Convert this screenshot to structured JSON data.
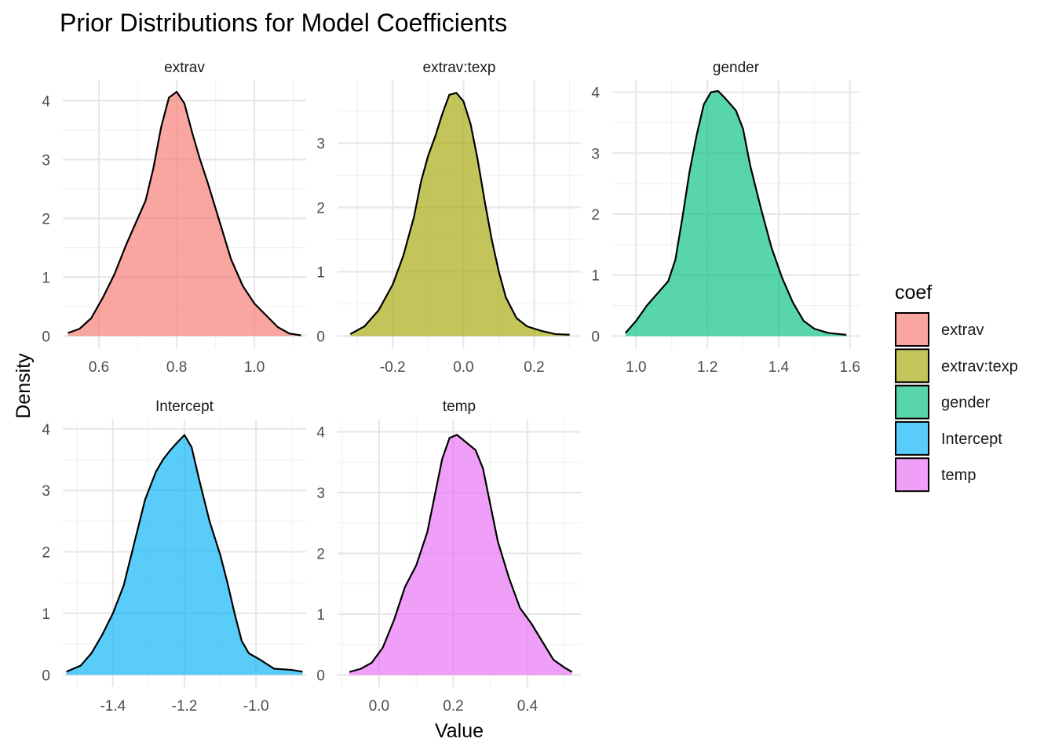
{
  "chart_data": {
    "type": "area",
    "title": "Prior Distributions for Model Coefficients",
    "xlabel": "Value",
    "ylabel": "Density",
    "grid": true,
    "legend": {
      "title": "coef",
      "placement": "right",
      "entries": [
        {
          "label": "extrav",
          "color": "#F8766D"
        },
        {
          "label": "extrav:texp",
          "color": "#A3A500"
        },
        {
          "label": "gender",
          "color": "#00BF7D"
        },
        {
          "label": "Intercept",
          "color": "#00B0F6"
        },
        {
          "label": "temp",
          "color": "#E76BF3"
        }
      ]
    },
    "panels": [
      {
        "name": "extrav",
        "color": "#F8766D",
        "xlim": [
          0.507,
          1.133
        ],
        "ylim": [
          -0.21,
          4.35
        ],
        "xticks": [
          0.6,
          0.8,
          1.0
        ],
        "xtick_labels": [
          "0.6",
          "0.8",
          "1.0"
        ],
        "yticks": [
          0,
          1,
          2,
          3,
          4
        ],
        "ytick_labels": [
          "0",
          "1",
          "2",
          "3",
          "4"
        ],
        "x": [
          0.52,
          0.55,
          0.58,
          0.61,
          0.64,
          0.67,
          0.7,
          0.72,
          0.74,
          0.76,
          0.78,
          0.8,
          0.82,
          0.84,
          0.86,
          0.88,
          0.91,
          0.94,
          0.97,
          1.0,
          1.03,
          1.06,
          1.09,
          1.12
        ],
        "y": [
          0.05,
          0.12,
          0.3,
          0.65,
          1.05,
          1.55,
          2.0,
          2.3,
          2.85,
          3.55,
          4.05,
          4.15,
          3.95,
          3.45,
          3.0,
          2.6,
          1.95,
          1.3,
          0.85,
          0.55,
          0.35,
          0.15,
          0.04,
          0.01
        ]
      },
      {
        "name": "extrav:texp",
        "color": "#A3A500",
        "xlim": [
          -0.356,
          0.332
        ],
        "ylim": [
          -0.19,
          3.98
        ],
        "xticks": [
          -0.2,
          0.0,
          0.2
        ],
        "xtick_labels": [
          "-0.2",
          "0.0",
          "0.2"
        ],
        "yticks": [
          0,
          1,
          2,
          3
        ],
        "ytick_labels": [
          "0",
          "1",
          "2",
          "3"
        ],
        "x": [
          -0.32,
          -0.28,
          -0.24,
          -0.2,
          -0.17,
          -0.14,
          -0.12,
          -0.1,
          -0.08,
          -0.06,
          -0.04,
          -0.02,
          0.0,
          0.02,
          0.04,
          0.06,
          0.08,
          0.1,
          0.12,
          0.15,
          0.18,
          0.22,
          0.26,
          0.3
        ],
        "y": [
          0.03,
          0.15,
          0.4,
          0.8,
          1.25,
          1.85,
          2.4,
          2.8,
          3.1,
          3.45,
          3.75,
          3.78,
          3.65,
          3.3,
          2.75,
          2.1,
          1.5,
          1.0,
          0.6,
          0.28,
          0.15,
          0.08,
          0.03,
          0.02
        ]
      },
      {
        "name": "gender",
        "color": "#00BF7D",
        "xlim": [
          0.933,
          1.627
        ],
        "ylim": [
          -0.2,
          4.2
        ],
        "xticks": [
          1.0,
          1.2,
          1.4,
          1.6
        ],
        "xtick_labels": [
          "1.0",
          "1.2",
          "1.4",
          "1.6"
        ],
        "yticks": [
          0,
          1,
          2,
          3,
          4
        ],
        "ytick_labels": [
          "0",
          "1",
          "2",
          "3",
          "4"
        ],
        "x": [
          0.97,
          1.0,
          1.03,
          1.06,
          1.09,
          1.11,
          1.13,
          1.15,
          1.17,
          1.19,
          1.21,
          1.23,
          1.25,
          1.28,
          1.3,
          1.32,
          1.35,
          1.38,
          1.41,
          1.44,
          1.47,
          1.5,
          1.54,
          1.59
        ],
        "y": [
          0.05,
          0.25,
          0.5,
          0.7,
          0.9,
          1.25,
          1.95,
          2.7,
          3.3,
          3.8,
          4.0,
          4.02,
          3.9,
          3.7,
          3.4,
          2.8,
          2.1,
          1.45,
          0.95,
          0.55,
          0.25,
          0.12,
          0.05,
          0.02
        ]
      },
      {
        "name": "Intercept",
        "color": "#00B0F6",
        "xlim": [
          -1.54,
          -0.86
        ],
        "ylim": [
          -0.2,
          4.15
        ],
        "xticks": [
          -1.4,
          -1.2,
          -1.0
        ],
        "xtick_labels": [
          "-1.4",
          "-1.2",
          "-1.0"
        ],
        "yticks": [
          0,
          1,
          2,
          3,
          4
        ],
        "ytick_labels": [
          "0",
          "1",
          "2",
          "3",
          "4"
        ],
        "x": [
          -1.53,
          -1.49,
          -1.46,
          -1.43,
          -1.4,
          -1.37,
          -1.34,
          -1.31,
          -1.28,
          -1.26,
          -1.24,
          -1.22,
          -1.2,
          -1.18,
          -1.16,
          -1.13,
          -1.1,
          -1.08,
          -1.06,
          -1.04,
          -1.02,
          -0.99,
          -0.95,
          -0.9,
          -0.87
        ],
        "y": [
          0.05,
          0.15,
          0.35,
          0.65,
          1.0,
          1.45,
          2.15,
          2.85,
          3.3,
          3.5,
          3.65,
          3.78,
          3.9,
          3.7,
          3.2,
          2.5,
          1.95,
          1.5,
          1.0,
          0.55,
          0.35,
          0.25,
          0.1,
          0.08,
          0.05
        ]
      },
      {
        "name": "temp",
        "color": "#E76BF3",
        "xlim": [
          -0.112,
          0.544
        ],
        "ylim": [
          -0.2,
          4.2
        ],
        "xticks": [
          0.0,
          0.2,
          0.4
        ],
        "xtick_labels": [
          "0.0",
          "0.2",
          "0.4"
        ],
        "yticks": [
          0,
          1,
          2,
          3,
          4
        ],
        "ytick_labels": [
          "0",
          "1",
          "2",
          "3",
          "4"
        ],
        "x": [
          -0.08,
          -0.05,
          -0.02,
          0.01,
          0.04,
          0.07,
          0.1,
          0.13,
          0.15,
          0.17,
          0.19,
          0.21,
          0.23,
          0.26,
          0.28,
          0.3,
          0.32,
          0.35,
          0.38,
          0.41,
          0.44,
          0.47,
          0.5,
          0.52
        ],
        "y": [
          0.05,
          0.1,
          0.2,
          0.45,
          0.9,
          1.45,
          1.8,
          2.35,
          2.95,
          3.55,
          3.9,
          3.95,
          3.85,
          3.7,
          3.4,
          2.8,
          2.2,
          1.6,
          1.1,
          0.85,
          0.55,
          0.25,
          0.12,
          0.05
        ]
      }
    ]
  }
}
